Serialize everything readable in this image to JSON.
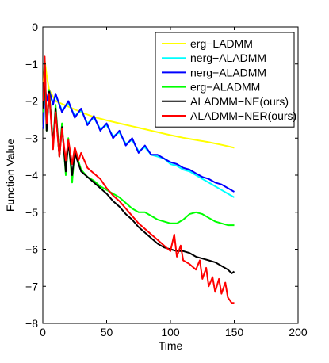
{
  "chart_data": {
    "type": "line",
    "title": "",
    "xlabel": "Time",
    "ylabel": "Function Value",
    "xlim": [
      0,
      200
    ],
    "ylim": [
      -8,
      0
    ],
    "xticks": [
      0,
      50,
      100,
      150,
      200
    ],
    "yticks": [
      0,
      -1,
      -2,
      -3,
      -4,
      -5,
      -6,
      -7,
      -8
    ],
    "grid": false,
    "legend_position": "top-right",
    "series": [
      {
        "name": "erg−LADMM",
        "color": "#ffff00",
        "x": [
          0.5,
          1.5,
          3,
          5,
          10,
          20,
          30,
          40,
          50,
          60,
          70,
          80,
          90,
          100,
          110,
          120,
          130,
          140,
          150
        ],
        "y": [
          -1.5,
          -0.9,
          -1.3,
          -1.7,
          -2.0,
          -2.15,
          -2.3,
          -2.43,
          -2.52,
          -2.6,
          -2.68,
          -2.76,
          -2.84,
          -2.92,
          -2.99,
          -3.05,
          -3.11,
          -3.18,
          -3.26
        ]
      },
      {
        "name": "nerg−ALADMM",
        "color": "#00ffff",
        "x": [
          0.5,
          1.5,
          3,
          5,
          8,
          10,
          15,
          20,
          25,
          30,
          35,
          40,
          45,
          50,
          55,
          60,
          65,
          70,
          75,
          80,
          85,
          90,
          95,
          100,
          105,
          110,
          115,
          120,
          125,
          130,
          135,
          140,
          145,
          150
        ],
        "y": [
          -2.7,
          -1.5,
          -1.95,
          -1.75,
          -2.05,
          -1.85,
          -2.25,
          -2.05,
          -2.4,
          -2.25,
          -2.6,
          -2.45,
          -2.75,
          -2.65,
          -2.95,
          -2.85,
          -3.15,
          -3.05,
          -3.35,
          -3.25,
          -3.45,
          -3.5,
          -3.55,
          -3.7,
          -3.75,
          -3.85,
          -3.9,
          -4.0,
          -4.1,
          -4.2,
          -4.3,
          -4.4,
          -4.5,
          -4.6
        ]
      },
      {
        "name": "nerg−ALADMM",
        "color": "#0000ff",
        "x": [
          0.5,
          1.5,
          3,
          5,
          8,
          10,
          15,
          20,
          25,
          30,
          35,
          40,
          45,
          50,
          55,
          60,
          65,
          70,
          75,
          80,
          85,
          90,
          95,
          100,
          105,
          110,
          115,
          120,
          125,
          130,
          135,
          140,
          145,
          150
        ],
        "y": [
          -2.75,
          -1.55,
          -2.0,
          -1.7,
          -2.1,
          -1.8,
          -2.3,
          -2.0,
          -2.45,
          -2.2,
          -2.65,
          -2.4,
          -2.8,
          -2.6,
          -3.0,
          -2.8,
          -3.2,
          -3.0,
          -3.4,
          -3.2,
          -3.45,
          -3.45,
          -3.55,
          -3.65,
          -3.7,
          -3.8,
          -3.85,
          -3.95,
          -4.05,
          -4.1,
          -4.2,
          -4.25,
          -4.35,
          -4.45
        ]
      },
      {
        "name": "erg−ALADMM",
        "color": "#00ff00",
        "x": [
          0.5,
          1.5,
          3,
          5,
          8,
          10,
          13,
          15,
          18,
          20,
          23,
          25,
          30,
          35,
          40,
          45,
          50,
          55,
          60,
          65,
          70,
          75,
          80,
          85,
          90,
          95,
          100,
          105,
          110,
          115,
          120,
          125,
          130,
          135,
          140,
          145,
          150
        ],
        "y": [
          -2.3,
          -1.0,
          -2.8,
          -1.7,
          -3.2,
          -2.1,
          -3.5,
          -2.6,
          -4.0,
          -3.0,
          -4.2,
          -3.3,
          -3.85,
          -4.05,
          -4.15,
          -4.3,
          -4.4,
          -4.5,
          -4.6,
          -4.75,
          -4.9,
          -5.0,
          -5.0,
          -5.1,
          -5.2,
          -5.25,
          -5.3,
          -5.3,
          -5.2,
          -5.05,
          -5.0,
          -5.05,
          -5.15,
          -5.25,
          -5.3,
          -5.35,
          -5.35
        ]
      },
      {
        "name": "ALADMM−NE(ours)",
        "color": "#000000",
        "x": [
          0.5,
          1.5,
          3,
          5,
          8,
          10,
          13,
          15,
          18,
          20,
          23,
          25,
          30,
          35,
          40,
          45,
          50,
          55,
          60,
          65,
          70,
          75,
          80,
          85,
          90,
          95,
          100,
          105,
          110,
          115,
          120,
          125,
          130,
          135,
          140,
          145,
          148,
          150
        ],
        "y": [
          -2.2,
          -0.85,
          -2.8,
          -1.75,
          -3.2,
          -2.2,
          -3.5,
          -2.7,
          -3.9,
          -3.1,
          -4.0,
          -3.4,
          -3.9,
          -4.05,
          -4.2,
          -4.35,
          -4.5,
          -4.7,
          -4.85,
          -5.05,
          -5.2,
          -5.4,
          -5.55,
          -5.7,
          -5.85,
          -5.95,
          -6.0,
          -6.05,
          -6.05,
          -6.1,
          -6.2,
          -6.25,
          -6.3,
          -6.35,
          -6.45,
          -6.55,
          -6.65,
          -6.6
        ]
      },
      {
        "name": "ALADMM−NER(ours)",
        "color": "#ff0000",
        "x": [
          0.5,
          1.5,
          3,
          5,
          8,
          10,
          13,
          15,
          18,
          20,
          23,
          25,
          28,
          30,
          35,
          40,
          45,
          50,
          55,
          60,
          65,
          70,
          75,
          80,
          85,
          90,
          95,
          100,
          103,
          105,
          108,
          110,
          115,
          120,
          123,
          125,
          128,
          130,
          133,
          135,
          138,
          140,
          143,
          145,
          148,
          150
        ],
        "y": [
          -2.0,
          -0.8,
          -2.6,
          -1.8,
          -3.3,
          -2.3,
          -3.5,
          -2.75,
          -3.6,
          -3.05,
          -3.7,
          -3.25,
          -3.6,
          -3.4,
          -3.8,
          -3.95,
          -4.1,
          -4.35,
          -4.55,
          -4.7,
          -4.9,
          -5.1,
          -5.3,
          -5.45,
          -5.6,
          -5.75,
          -5.9,
          -6.05,
          -5.6,
          -6.2,
          -5.9,
          -6.3,
          -6.4,
          -6.55,
          -6.3,
          -6.8,
          -6.5,
          -7.0,
          -6.75,
          -7.15,
          -6.8,
          -7.2,
          -6.9,
          -7.3,
          -7.45,
          -7.45
        ]
      }
    ]
  }
}
